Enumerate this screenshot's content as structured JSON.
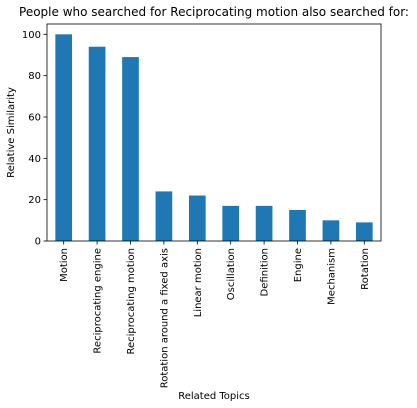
{
  "chart_data": {
    "type": "bar",
    "title": "People who searched for Reciprocating motion also searched for:",
    "xlabel": "Related Topics",
    "ylabel": "Relative Similarity",
    "categories": [
      "Motion",
      "Reciprocating engine",
      "Reciprocating motion",
      "Rotation around a fixed axis",
      "Linear motion",
      "Oscillation",
      "Definition",
      "Engine",
      "Mechanism",
      "Rotation"
    ],
    "values": [
      100,
      94,
      89,
      24,
      22,
      17,
      17,
      15,
      10,
      9
    ],
    "ylim": [
      0,
      105
    ],
    "yticks": [
      0,
      20,
      40,
      60,
      80,
      100
    ],
    "grid": false,
    "legend": "none",
    "bar_color": "#1f77b4"
  }
}
